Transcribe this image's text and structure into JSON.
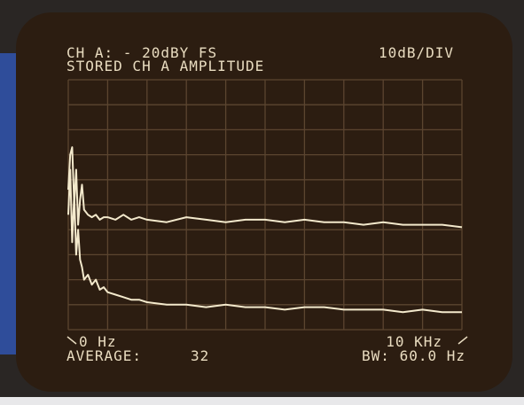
{
  "chart_data": {
    "type": "line",
    "title": "CH A: - 20dBY FS",
    "scale_label": "10dB/DIV",
    "subtitle": "STORED CH A AMPLITUDE",
    "average_label": "AVERAGE:",
    "average": 32,
    "bandwidth": "BW: 60.0 Hz",
    "x": [
      0,
      50,
      100,
      150,
      200,
      250,
      300,
      350,
      400,
      500,
      600,
      700,
      800,
      900,
      1000,
      1200,
      1400,
      1600,
      1800,
      2000,
      2500,
      3000,
      3500,
      4000,
      4500,
      5000,
      5500,
      6000,
      6500,
      7000,
      7500,
      8000,
      8500,
      9000,
      9500,
      10000
    ],
    "series": [
      {
        "color": "#f3e9cc",
        "values": [
          -64,
          -50,
          -47,
          -70,
          -56,
          -78,
          -68,
          -62,
          -72,
          -74,
          -75,
          -74,
          -76,
          -75,
          -75,
          -76,
          -74,
          -76,
          -75,
          -76,
          -77,
          -75,
          -76,
          -77,
          -76,
          -76,
          -77,
          -76,
          -77,
          -77,
          -78,
          -77,
          -78,
          -78,
          -78,
          -79
        ]
      },
      {
        "color": "#f3e9cc",
        "values": [
          -74,
          -56,
          -85,
          -66,
          -90,
          -80,
          -92,
          -95,
          -100,
          -98,
          -102,
          -100,
          -104,
          -103,
          -105,
          -106,
          -107,
          -108,
          -108,
          -109,
          -110,
          -110,
          -111,
          -110,
          -111,
          -111,
          -112,
          -111,
          -111,
          -112,
          -112,
          -112,
          -113,
          -112,
          -113,
          -113
        ]
      }
    ],
    "xlim": [
      0,
      10000
    ],
    "xticks": [
      {
        "value": 0,
        "label": "0 Hz"
      },
      {
        "value": 10000,
        "label": "10 KHz"
      }
    ],
    "ylim": [
      -120,
      -20
    ],
    "grid": true
  }
}
